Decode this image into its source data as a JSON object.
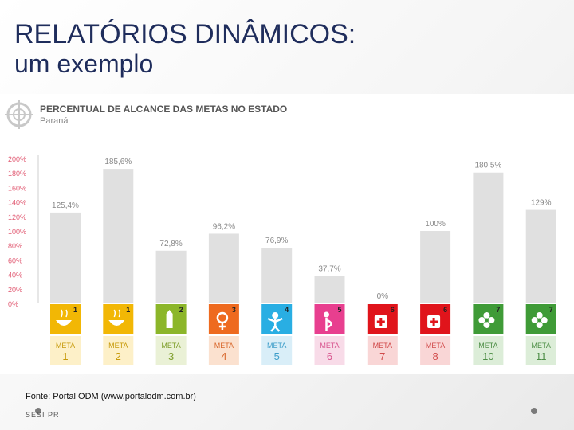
{
  "slide": {
    "title_main": "RELATÓRIOS DIN",
    "title_hat": "Â",
    "title_end": "MICOS",
    "title_colon": ":",
    "subtitle": "um exemplo",
    "source": "Fonte: Portal ODM (www.portalodm.com.br)",
    "footer": "SESI PR"
  },
  "chart_data": {
    "type": "bar",
    "title": "PERCENTUAL DE ALCANCE DAS METAS NO ESTADO",
    "subtitle": "Paraná",
    "ylim": [
      0,
      200
    ],
    "y_ticks": [
      "0%",
      "20%",
      "40%",
      "60%",
      "80%",
      "100%",
      "120%",
      "140%",
      "160%",
      "180%",
      "200%"
    ],
    "categories": [
      "META 1",
      "META 2",
      "META 3",
      "META 4",
      "META 5",
      "META 6",
      "META 7",
      "META 8",
      "META 10",
      "META 11"
    ],
    "meta_words": [
      "META",
      "META",
      "META",
      "META",
      "META",
      "META",
      "META",
      "META",
      "META",
      "META"
    ],
    "meta_numbers": [
      "1",
      "2",
      "3",
      "4",
      "5",
      "6",
      "7",
      "8",
      "10",
      "11"
    ],
    "values": [
      125.4,
      185.6,
      72.8,
      96.2,
      76.9,
      37.7,
      0,
      100,
      180.5,
      129
    ],
    "value_labels": [
      "125,4%",
      "185,6%",
      "72,8%",
      "96,2%",
      "76,9%",
      "37,7%",
      "0%",
      "100%",
      "180,5%",
      "129%"
    ],
    "goal_numbers": [
      "1",
      "1",
      "2",
      "3",
      "4",
      "5",
      "6",
      "6",
      "7",
      "7"
    ],
    "goal_icons": [
      "bowl-icon",
      "bowl-icon",
      "pencil-icon",
      "female-icon",
      "child-icon",
      "pregnant-icon",
      "medkit-icon",
      "medkit-icon",
      "flower-icon",
      "flower-icon"
    ],
    "goal_colors": [
      "#f2b705",
      "#f2b705",
      "#8cb62a",
      "#ee6a1f",
      "#29aee3",
      "#e83f8f",
      "#e0141b",
      "#e0141b",
      "#3f9b37",
      "#3f9b37"
    ],
    "label_bg_colors": [
      "#fdf0c8",
      "#fdf0c8",
      "#eaf1d6",
      "#fbe1cf",
      "#d9eef8",
      "#f8dbe8",
      "#f9d6d6",
      "#f9d6d6",
      "#dcedd8",
      "#dcedd8"
    ],
    "label_text_colors": [
      "#c79a0a",
      "#c79a0a",
      "#7e9e2b",
      "#d8672c",
      "#3e9ec9",
      "#d8558f",
      "#d14a4a",
      "#d14a4a",
      "#4d8e46",
      "#4d8e46"
    ],
    "bar_color": "#e0e0e0",
    "grid": false
  }
}
